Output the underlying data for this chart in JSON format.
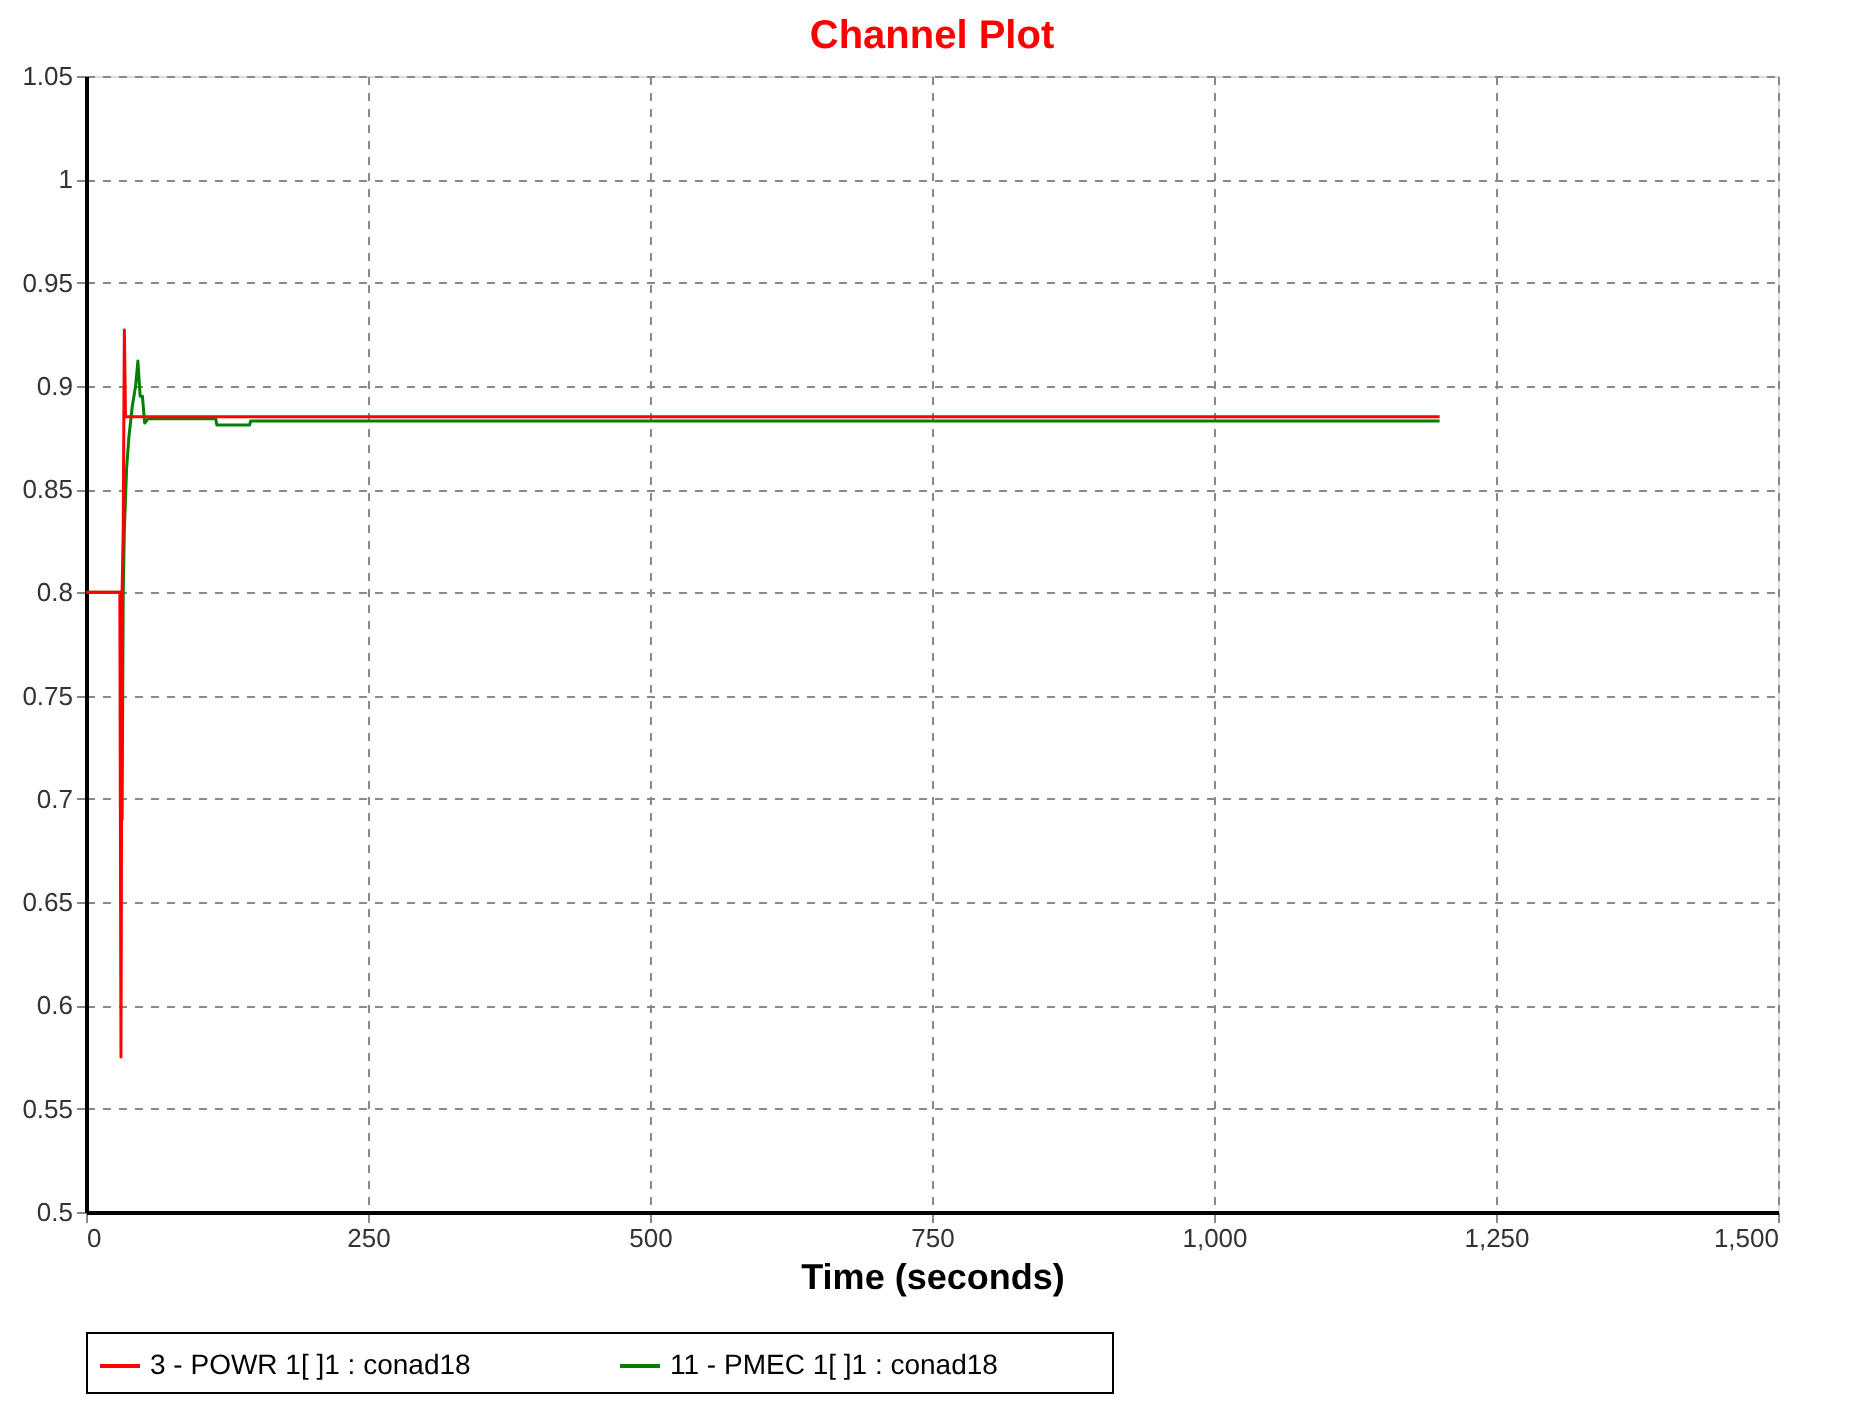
{
  "chart_data": {
    "type": "line",
    "title": "Channel Plot",
    "xlabel": "Time (seconds)",
    "series": [
      {
        "name": "3 - POWR   1[            ]1 : conad18",
        "color": "#ff0000",
        "x": [
          0,
          30,
          31,
          32,
          33,
          34,
          35,
          1200
        ],
        "values": [
          0.8,
          0.8,
          0.575,
          0.8,
          0.83,
          0.927,
          0.885,
          0.885
        ]
      },
      {
        "name": "11 - PMEC   1[            ]1 : conad18",
        "color": "#008000",
        "x": [
          0,
          31,
          32,
          33,
          34,
          36,
          38,
          41,
          44,
          46,
          48,
          50,
          52,
          55,
          115,
          116,
          145,
          146,
          1200
        ],
        "values": [
          0.8,
          0.8,
          0.69,
          0.8,
          0.83,
          0.86,
          0.875,
          0.89,
          0.9,
          0.912,
          0.895,
          0.895,
          0.882,
          0.884,
          0.884,
          0.881,
          0.881,
          0.883,
          0.883
        ]
      }
    ],
    "xlim": [
      0,
      1500
    ],
    "xticks": [
      0,
      250,
      500,
      750,
      {
        "value": 1000,
        "label": "1,000"
      },
      {
        "value": 1250,
        "label": "1,250"
      },
      {
        "value": 1500,
        "label": "1,500"
      }
    ],
    "ylim": [
      0.5,
      1.05
    ],
    "yticks": [
      0.5,
      0.55,
      0.6,
      0.65,
      0.7,
      0.75,
      0.8,
      0.85,
      0.9,
      0.95,
      1,
      1.05
    ],
    "grid": true,
    "legend": "bottom",
    "marker": "none",
    "line_style": "solid"
  }
}
